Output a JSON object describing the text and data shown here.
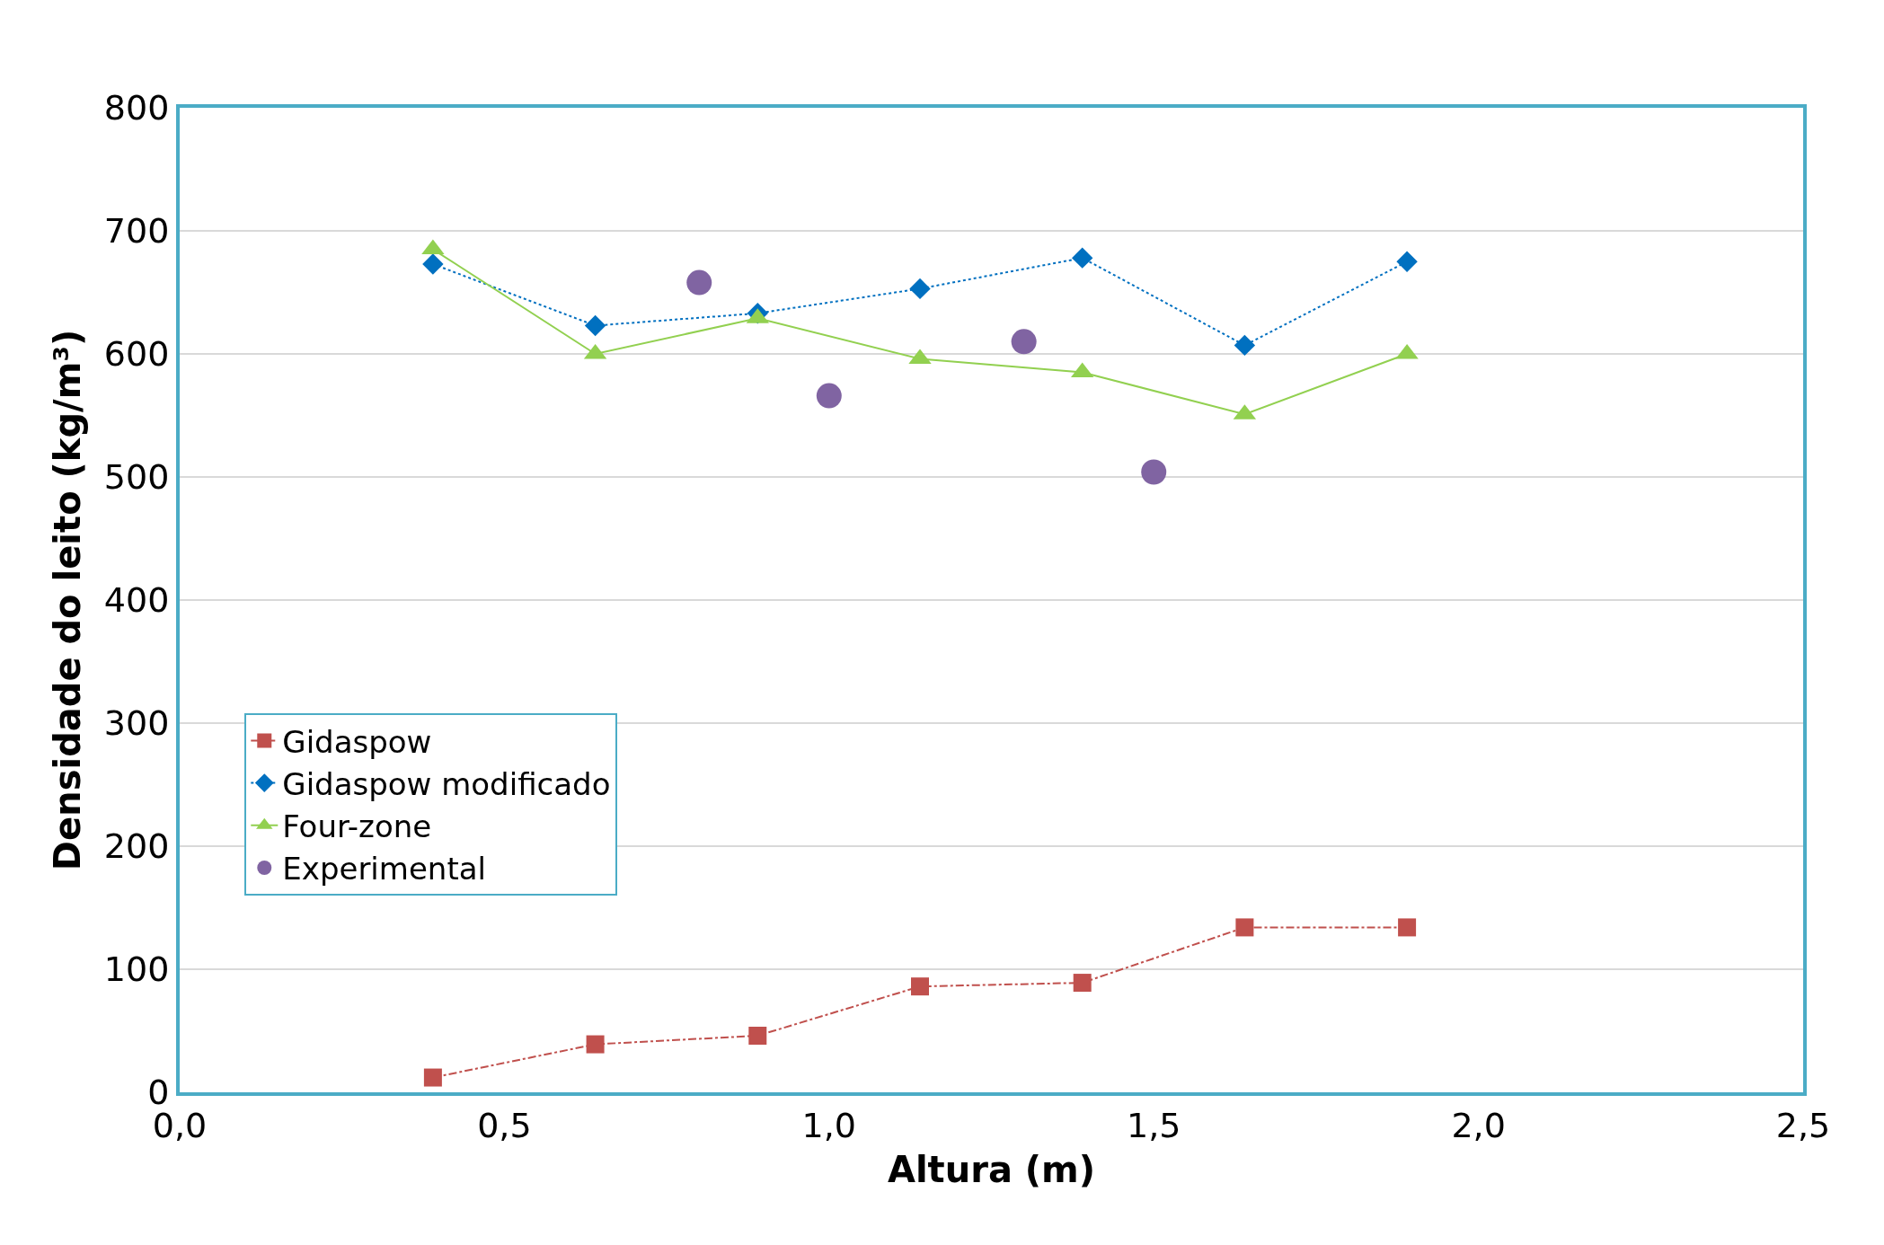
{
  "chart_data": {
    "type": "line",
    "xlabel": "Altura (m)",
    "ylabel": "Densidade do leito (kg/m³)",
    "xlim": [
      0,
      2.5
    ],
    "xticks": [
      {
        "value": 0,
        "label": "0,0"
      },
      {
        "value": 0.5,
        "label": "0,5"
      },
      {
        "value": 1,
        "label": "1,0"
      },
      {
        "value": 1.5,
        "label": "1,5"
      },
      {
        "value": 2,
        "label": "2,0"
      },
      {
        "value": 2.5,
        "label": "2,5"
      }
    ],
    "ylim": [
      0,
      800
    ],
    "yticks": [
      0,
      100,
      200,
      300,
      400,
      500,
      600,
      700,
      800
    ],
    "grid": "y",
    "legend": "bottom left",
    "series": [
      {
        "name": "Gidaspow",
        "color": "#c0504d",
        "marker": "square",
        "line_style": "dashdot",
        "x": [
          0.39,
          0.64,
          0.89,
          1.14,
          1.39,
          1.64,
          1.89
        ],
        "values": [
          12,
          39,
          46,
          86,
          89,
          134,
          134
        ]
      },
      {
        "name": "Gidaspow modificado",
        "color": "#0070c0",
        "marker": "diamond",
        "line_style": "dotted",
        "x": [
          0.39,
          0.64,
          0.89,
          1.14,
          1.39,
          1.64,
          1.89
        ],
        "values": [
          673,
          623,
          633,
          653,
          678,
          607,
          675
        ]
      },
      {
        "name": "Four-zone",
        "color": "#92d050",
        "marker": "triangle",
        "line_style": "solid",
        "x": [
          0.39,
          0.64,
          0.89,
          1.14,
          1.39,
          1.64,
          1.89
        ],
        "values": [
          685,
          600,
          629,
          596,
          585,
          551,
          600
        ]
      },
      {
        "name": "Experimental",
        "type": "scatter",
        "color": "#8064a2",
        "marker": "circle",
        "x": [
          0.8,
          1.0,
          1.3,
          1.5
        ],
        "values": [
          658,
          566,
          610,
          504
        ]
      }
    ]
  }
}
